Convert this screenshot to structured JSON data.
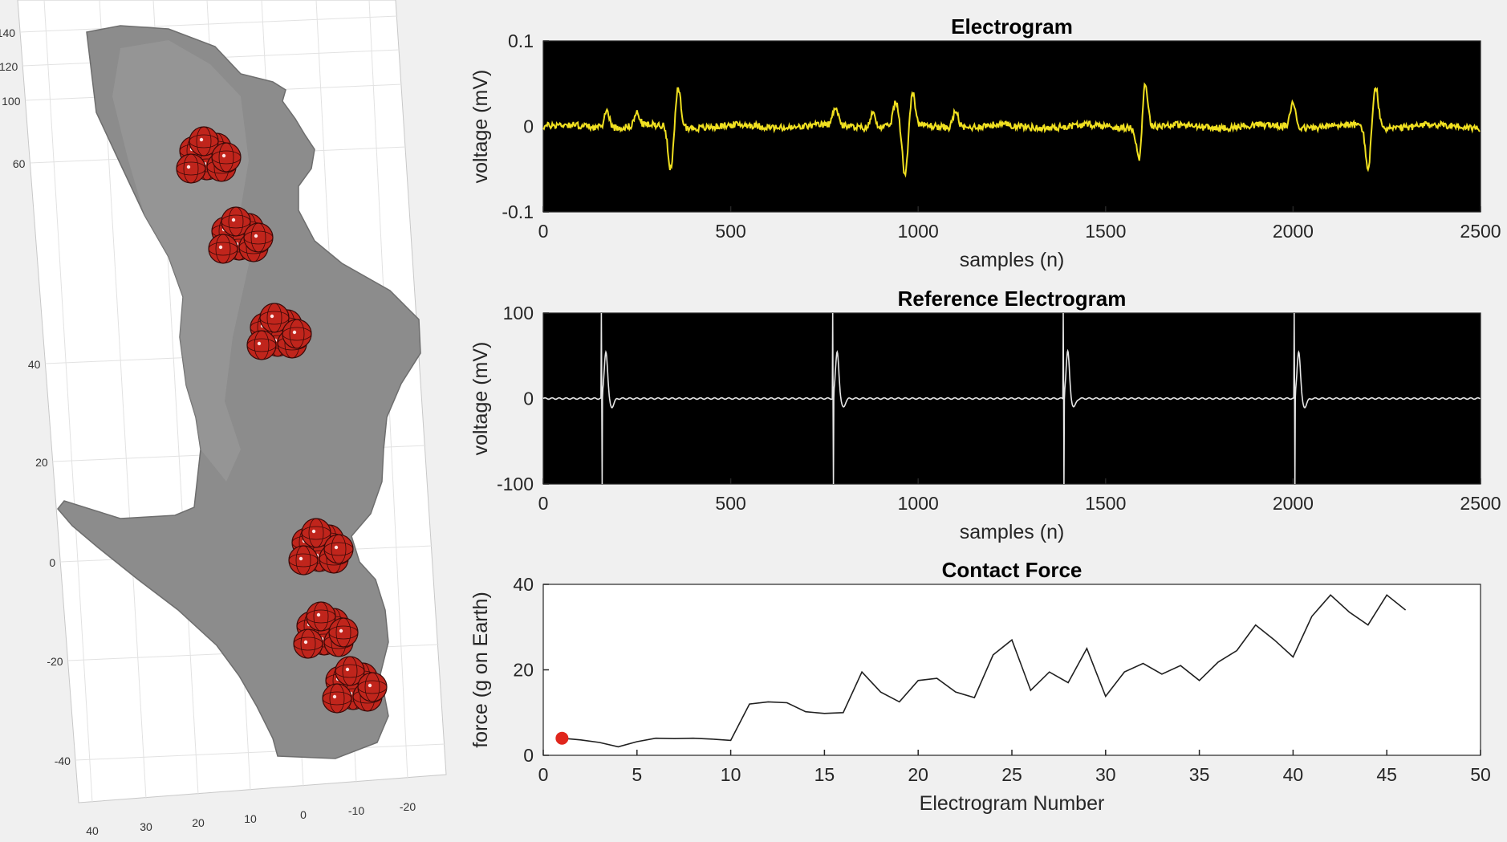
{
  "figure": {
    "background": "#f0f0f0",
    "mesh_color": "#8c8c8c",
    "marker_color": "#c0251c"
  },
  "chart_data": [
    {
      "id": "left-3d",
      "type": "scatter",
      "title": "",
      "xlabel": "",
      "ylabel": "",
      "grid": true,
      "y_tick_labels": [
        "140",
        "120",
        "100",
        "60",
        "40",
        "20",
        "0",
        "-20",
        "-40"
      ],
      "x_tick_labels": [
        "40",
        "30",
        "20",
        "10",
        "0",
        "-10",
        "-20"
      ],
      "electrode_clusters": 6
    },
    {
      "id": "electrogram",
      "type": "line",
      "title": "Electrogram",
      "xlabel": "samples (n)",
      "ylabel": "voltage (mV)",
      "xlim": [
        0,
        2500
      ],
      "ylim": [
        -0.1,
        0.1
      ],
      "x_ticks": [
        0,
        500,
        1000,
        1500,
        2000,
        2500
      ],
      "y_ticks": [
        -0.1,
        0,
        0.1
      ],
      "y_tick_labels": [
        "-0.1",
        "0",
        "0.1"
      ],
      "background": "#000000",
      "line_color": "#f0e020",
      "grid": false,
      "spikes": [
        {
          "x": 170,
          "y": 0.02
        },
        {
          "x": 250,
          "y": 0.015
        },
        {
          "x": 340,
          "y": -0.05
        },
        {
          "x": 360,
          "y": 0.045
        },
        {
          "x": 780,
          "y": 0.022
        },
        {
          "x": 880,
          "y": 0.018
        },
        {
          "x": 940,
          "y": 0.028
        },
        {
          "x": 965,
          "y": -0.058
        },
        {
          "x": 985,
          "y": 0.038
        },
        {
          "x": 1100,
          "y": 0.02
        },
        {
          "x": 1590,
          "y": -0.04
        },
        {
          "x": 1605,
          "y": 0.055
        },
        {
          "x": 2000,
          "y": 0.03
        },
        {
          "x": 2200,
          "y": -0.05
        },
        {
          "x": 2220,
          "y": 0.048
        }
      ]
    },
    {
      "id": "reference",
      "type": "line",
      "title": "Reference Electrogram",
      "xlabel": "samples (n)",
      "ylabel": "voltage (mV)",
      "xlim": [
        0,
        2500
      ],
      "ylim": [
        -100,
        100
      ],
      "x_ticks": [
        0,
        500,
        1000,
        1500,
        2000,
        2500
      ],
      "y_ticks": [
        -100,
        0,
        100
      ],
      "y_tick_labels": [
        "-100",
        "0",
        "100"
      ],
      "background": "#000000",
      "line_color": "#e6e6e6",
      "grid": false,
      "beats_x": [
        155,
        772,
        1387,
        2003
      ]
    },
    {
      "id": "contact-force",
      "type": "line",
      "title": "Contact Force",
      "xlabel": "Electrogram Number",
      "ylabel": "force (g on Earth)",
      "xlim": [
        0,
        50
      ],
      "ylim": [
        0,
        40
      ],
      "x_ticks": [
        0,
        5,
        10,
        15,
        20,
        25,
        30,
        35,
        40,
        45,
        50
      ],
      "y_ticks": [
        0,
        20,
        40
      ],
      "background": "#ffffff",
      "line_color": "#202020",
      "marker_color": "#e0261c",
      "grid": false,
      "x": [
        1,
        2,
        3,
        4,
        5,
        6,
        7,
        8,
        9,
        10,
        11,
        12,
        13,
        14,
        15,
        16,
        17,
        18,
        19,
        20,
        21,
        22,
        23,
        24,
        25,
        26,
        27,
        28,
        29,
        30,
        31,
        32,
        33,
        34,
        35,
        36,
        37,
        38,
        39,
        40,
        41,
        42,
        43,
        44,
        45,
        46
      ],
      "y": [
        4,
        3.6,
        3,
        2,
        3.2,
        4,
        3.9,
        4,
        3.8,
        3.5,
        12,
        12.5,
        12.3,
        10.2,
        9.8,
        10,
        19.5,
        14.8,
        12.5,
        17.5,
        18,
        14.8,
        13.5,
        23.5,
        27,
        15.2,
        19.5,
        17,
        25,
        13.8,
        19.5,
        21.5,
        19,
        21,
        17.5,
        21.8,
        24.5,
        30.5,
        27,
        23,
        32.5,
        37.5,
        33.5,
        30.5,
        37.5,
        34
      ],
      "highlight": {
        "x": 1,
        "y": 4
      }
    }
  ]
}
